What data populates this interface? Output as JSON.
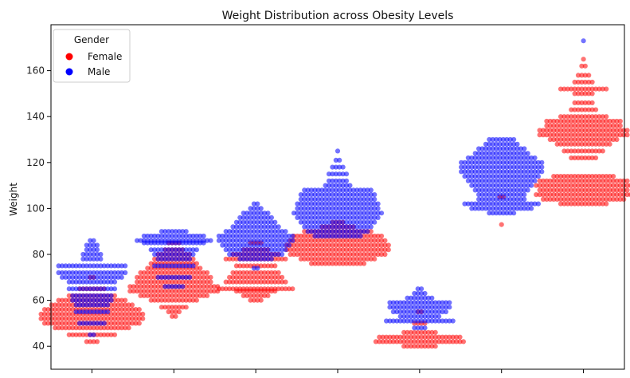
{
  "chart_data": {
    "type": "scatter",
    "subtype": "swarm",
    "title": "Weight Distribution across Obesity Levels",
    "xlabel": "",
    "ylabel": "Weight",
    "ylim": [
      30,
      180
    ],
    "yticks": [
      40,
      60,
      80,
      100,
      120,
      140,
      160
    ],
    "categories": [
      "",
      "",
      "",
      "",
      "",
      "",
      ""
    ],
    "legend": {
      "title": "Gender",
      "placement": "top-left",
      "entries": [
        {
          "label": "Female",
          "color": "#ff0000"
        },
        {
          "label": "Male",
          "color": "#0000ff"
        }
      ]
    },
    "series": [
      {
        "name": "Female",
        "color": "#ff0000",
        "clusters": [
          {
            "category": 0,
            "groups": [
              [
                42,
                4
              ],
              [
                45,
                14
              ],
              [
                48,
                22
              ],
              [
                50,
                28
              ],
              [
                52,
                30
              ],
              [
                54,
                30
              ],
              [
                56,
                28
              ],
              [
                58,
                24
              ],
              [
                60,
                20
              ],
              [
                62,
                14
              ],
              [
                65,
                8
              ],
              [
                70,
                2
              ]
            ]
          },
          {
            "category": 1,
            "groups": [
              [
                53,
                2
              ],
              [
                55,
                4
              ],
              [
                57,
                8
              ],
              [
                60,
                14
              ],
              [
                62,
                20
              ],
              [
                64,
                26
              ],
              [
                66,
                26
              ],
              [
                68,
                22
              ],
              [
                70,
                22
              ],
              [
                72,
                20
              ],
              [
                74,
                16
              ],
              [
                76,
                14
              ],
              [
                78,
                12
              ],
              [
                80,
                10
              ],
              [
                82,
                6
              ],
              [
                85,
                4
              ]
            ]
          },
          {
            "category": 2,
            "groups": [
              [
                60,
                4
              ],
              [
                62,
                8
              ],
              [
                64,
                12
              ],
              [
                65,
                22
              ],
              [
                68,
                18
              ],
              [
                70,
                16
              ],
              [
                72,
                14
              ],
              [
                75,
                12
              ],
              [
                78,
                18
              ],
              [
                80,
                14
              ],
              [
                82,
                8
              ],
              [
                85,
                4
              ]
            ]
          },
          {
            "category": 3,
            "groups": [
              [
                76,
                16
              ],
              [
                78,
                22
              ],
              [
                80,
                28
              ],
              [
                82,
                30
              ],
              [
                84,
                30
              ],
              [
                86,
                28
              ],
              [
                88,
                26
              ],
              [
                90,
                20
              ],
              [
                92,
                10
              ],
              [
                94,
                4
              ]
            ]
          },
          {
            "category": 4,
            "groups": [
              [
                40,
                10
              ],
              [
                42,
                26
              ],
              [
                44,
                24
              ],
              [
                46,
                10
              ],
              [
                50,
                4
              ],
              [
                55,
                2
              ]
            ]
          },
          {
            "category": 5,
            "groups": [
              [
                93,
                1
              ],
              [
                105,
                2
              ]
            ]
          },
          {
            "category": 6,
            "groups": [
              [
                102,
                14
              ],
              [
                104,
                24
              ],
              [
                106,
                28
              ],
              [
                108,
                26
              ],
              [
                110,
                28
              ],
              [
                112,
                26
              ],
              [
                114,
                18
              ],
              [
                122,
                8
              ],
              [
                125,
                12
              ],
              [
                128,
                16
              ],
              [
                130,
                20
              ],
              [
                132,
                26
              ],
              [
                134,
                26
              ],
              [
                136,
                22
              ],
              [
                138,
                22
              ],
              [
                140,
                14
              ],
              [
                143,
                8
              ],
              [
                146,
                6
              ],
              [
                150,
                6
              ],
              [
                152,
                14
              ],
              [
                155,
                6
              ],
              [
                158,
                4
              ],
              [
                162,
                2
              ],
              [
                165,
                1
              ]
            ]
          }
        ]
      },
      {
        "name": "Male",
        "color": "#0000ff",
        "clusters": [
          {
            "category": 0,
            "groups": [
              [
                45,
                2
              ],
              [
                50,
                8
              ],
              [
                55,
                10
              ],
              [
                58,
                10
              ],
              [
                60,
                12
              ],
              [
                62,
                12
              ],
              [
                65,
                14
              ],
              [
                68,
                14
              ],
              [
                70,
                18
              ],
              [
                72,
                20
              ],
              [
                75,
                20
              ],
              [
                78,
                6
              ],
              [
                80,
                6
              ],
              [
                82,
                4
              ],
              [
                84,
                4
              ],
              [
                86,
                2
              ]
            ]
          },
          {
            "category": 1,
            "groups": [
              [
                66,
                6
              ],
              [
                70,
                10
              ],
              [
                75,
                12
              ],
              [
                78,
                10
              ],
              [
                80,
                12
              ],
              [
                82,
                14
              ],
              [
                85,
                18
              ],
              [
                86,
                22
              ],
              [
                88,
                18
              ],
              [
                90,
                8
              ]
            ]
          },
          {
            "category": 2,
            "groups": [
              [
                74,
                2
              ],
              [
                78,
                10
              ],
              [
                80,
                16
              ],
              [
                82,
                18
              ],
              [
                84,
                20
              ],
              [
                86,
                22
              ],
              [
                88,
                22
              ],
              [
                90,
                18
              ],
              [
                92,
                14
              ],
              [
                94,
                12
              ],
              [
                96,
                10
              ],
              [
                98,
                8
              ],
              [
                100,
                4
              ],
              [
                102,
                2
              ]
            ]
          },
          {
            "category": 3,
            "groups": [
              [
                88,
                14
              ],
              [
                90,
                18
              ],
              [
                92,
                20
              ],
              [
                94,
                22
              ],
              [
                96,
                24
              ],
              [
                98,
                26
              ],
              [
                100,
                24
              ],
              [
                102,
                24
              ],
              [
                104,
                22
              ],
              [
                106,
                22
              ],
              [
                108,
                20
              ],
              [
                110,
                8
              ],
              [
                112,
                6
              ],
              [
                115,
                6
              ],
              [
                118,
                4
              ],
              [
                121,
                2
              ],
              [
                125,
                1
              ]
            ]
          },
          {
            "category": 4,
            "groups": [
              [
                48,
                4
              ],
              [
                51,
                20
              ],
              [
                53,
                12
              ],
              [
                55,
                16
              ],
              [
                57,
                18
              ],
              [
                59,
                18
              ],
              [
                61,
                8
              ],
              [
                63,
                4
              ],
              [
                65,
                2
              ]
            ]
          },
          {
            "category": 5,
            "groups": [
              [
                98,
                8
              ],
              [
                100,
                18
              ],
              [
                102,
                22
              ],
              [
                104,
                14
              ],
              [
                106,
                14
              ],
              [
                108,
                16
              ],
              [
                110,
                18
              ],
              [
                112,
                20
              ],
              [
                114,
                22
              ],
              [
                116,
                24
              ],
              [
                118,
                24
              ],
              [
                120,
                24
              ],
              [
                122,
                20
              ],
              [
                124,
                16
              ],
              [
                126,
                14
              ],
              [
                128,
                10
              ],
              [
                130,
                8
              ]
            ]
          },
          {
            "category": 6,
            "groups": [
              [
                173,
                1
              ]
            ]
          }
        ]
      }
    ]
  }
}
